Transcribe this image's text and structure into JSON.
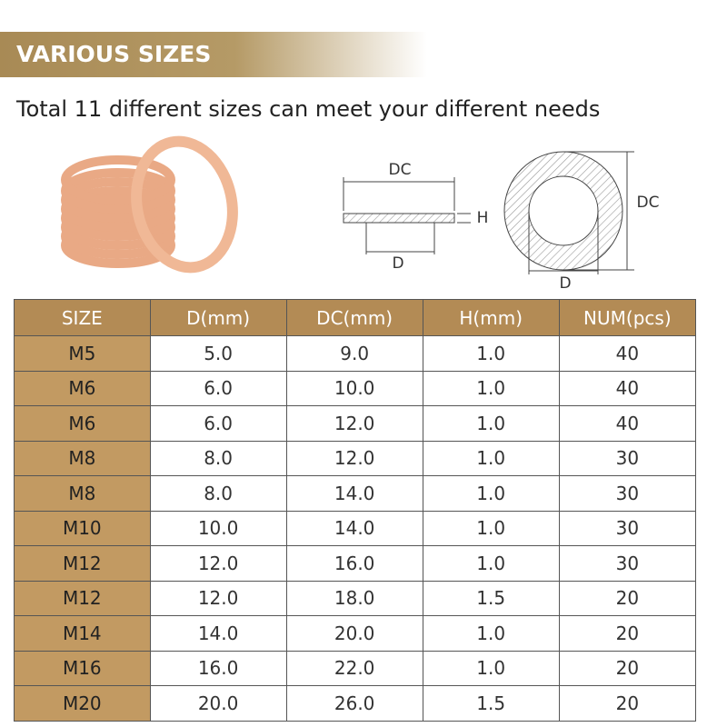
{
  "header": {
    "title": "VARIOUS SIZES",
    "subtitle": "Total 11 different sizes can meet your different needs"
  },
  "diagram": {
    "section_labels": [
      "DC",
      "H",
      "D"
    ],
    "ring_labels": [
      "DC",
      "D"
    ]
  },
  "table": {
    "headers": [
      "SIZE",
      "D(mm)",
      "DC(mm)",
      "H(mm)",
      "NUM(pcs)"
    ],
    "rows": [
      [
        "M5",
        "5.0",
        "9.0",
        "1.0",
        "40"
      ],
      [
        "M6",
        "6.0",
        "10.0",
        "1.0",
        "40"
      ],
      [
        "M6",
        "6.0",
        "12.0",
        "1.0",
        "40"
      ],
      [
        "M8",
        "8.0",
        "12.0",
        "1.0",
        "30"
      ],
      [
        "M8",
        "8.0",
        "14.0",
        "1.0",
        "30"
      ],
      [
        "M10",
        "10.0",
        "14.0",
        "1.0",
        "30"
      ],
      [
        "M12",
        "12.0",
        "16.0",
        "1.0",
        "30"
      ],
      [
        "M12",
        "12.0",
        "18.0",
        "1.5",
        "20"
      ],
      [
        "M14",
        "14.0",
        "20.0",
        "1.0",
        "20"
      ],
      [
        "M16",
        "16.0",
        "22.0",
        "1.0",
        "20"
      ],
      [
        "M20",
        "20.0",
        "26.0",
        "1.5",
        "20"
      ]
    ]
  }
}
